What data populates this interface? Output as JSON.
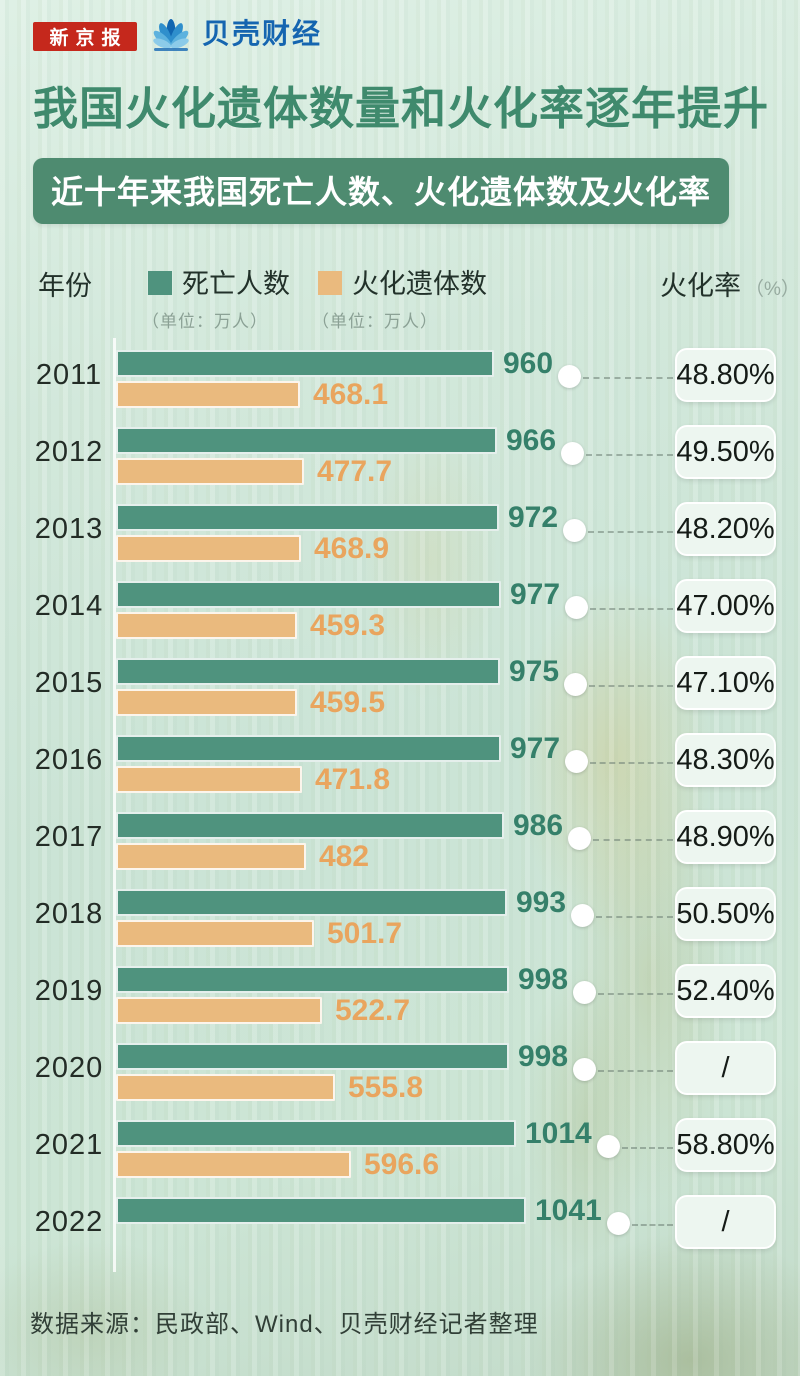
{
  "header": {
    "newspaper_logo": "新京报",
    "brand_name": "贝壳财经"
  },
  "title": "我国火化遗体数量和火化率逐年提升",
  "subtitle": "近十年来我国死亡人数、火化遗体数及火化率",
  "legend": {
    "year_label": "年份",
    "deaths_label": "死亡人数",
    "deaths_unit": "（单位：万人）",
    "cremations_label": "火化遗体数",
    "cremations_unit": "（单位：万人）",
    "rate_label": "火化率",
    "rate_unit": "（%）"
  },
  "chart_data": {
    "type": "bar",
    "orientation": "horizontal",
    "title": "近十年来我国死亡人数、火化遗体数及火化率",
    "categories": [
      "2011",
      "2012",
      "2013",
      "2014",
      "2015",
      "2016",
      "2017",
      "2018",
      "2019",
      "2020",
      "2021",
      "2022"
    ],
    "series": [
      {
        "name": "死亡人数",
        "unit": "万人",
        "color": "#4f937e",
        "values": [
          960,
          966,
          972,
          977,
          975,
          977,
          986,
          993,
          998,
          998,
          1014,
          1041
        ]
      },
      {
        "name": "火化遗体数",
        "unit": "万人",
        "color": "#eaba7e",
        "values": [
          468.1,
          477.7,
          468.9,
          459.3,
          459.5,
          471.8,
          482,
          501.7,
          522.7,
          555.8,
          596.6,
          null
        ]
      },
      {
        "name": "火化率",
        "unit": "%",
        "values": [
          "48.80%",
          "49.50%",
          "48.20%",
          "47.00%",
          "47.10%",
          "48.30%",
          "48.90%",
          "50.50%",
          "52.40%",
          "/",
          "58.80%",
          "/"
        ]
      }
    ],
    "xlim": [
      0,
      1100
    ],
    "legend_position": "top",
    "grid": false
  },
  "footer": {
    "source": "数据来源：民政部、Wind、贝壳财经记者整理"
  },
  "colors": {
    "deaths_bar": "#4f937e",
    "cremations_bar": "#eaba7e",
    "banner_bg": "#4e8b70",
    "title_text": "#3f8a6d",
    "newspaper_logo_bg": "#c5281c",
    "brand_blue": "#1565b0",
    "background": "#cde5d7"
  }
}
